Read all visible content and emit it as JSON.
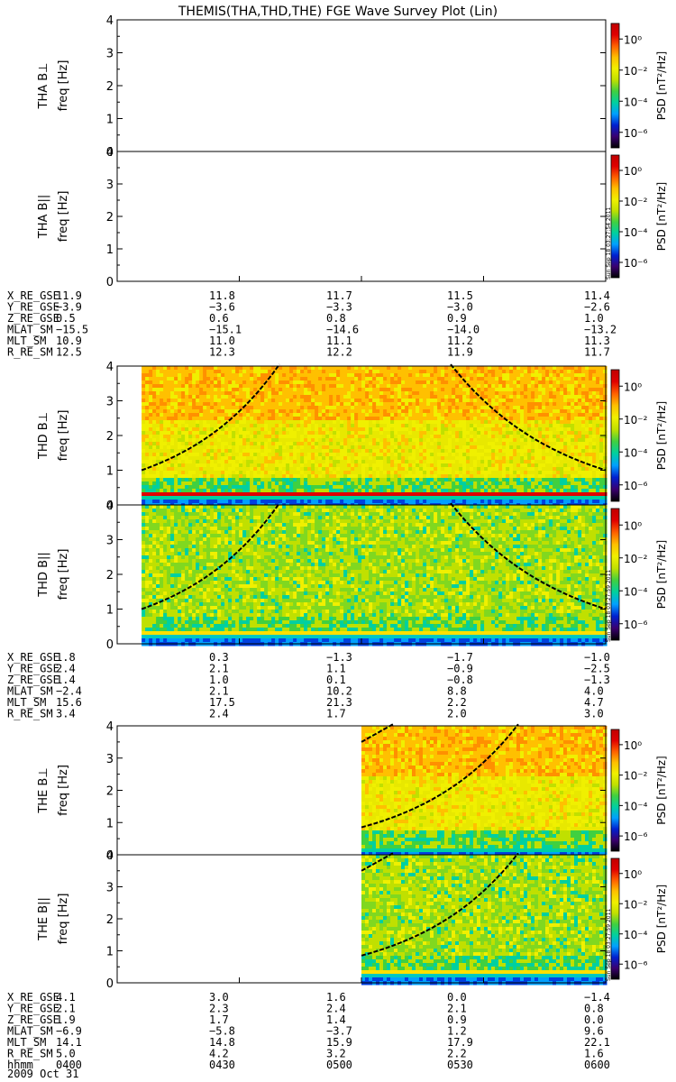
{
  "title": "THEMIS(THA,THD,THE) FGE Wave Survey Plot (Lin)",
  "date_label": "2009 Oct 31",
  "freq_unit_label": "freq [Hz]",
  "colorbar": {
    "label": "PSD [nT²/Hz]",
    "tick_labels": [
      "10⁰",
      "10⁻²",
      "10⁻⁴",
      "10⁻⁶"
    ],
    "colors": [
      "#000000",
      "#3a0070",
      "#0020d0",
      "#00a0ff",
      "#00d0a0",
      "#40d040",
      "#c0e000",
      "#f0f000",
      "#ffc000",
      "#ff6000",
      "#e00000",
      "#c00000"
    ]
  },
  "stamps": [
    "Sun Sep 18 03:27:54 2011",
    "Sun Sep 18 03:27:59 2011",
    "Sun Sep 18 03:27:59 2011"
  ],
  "chart_data": [
    {
      "type": "heatmap",
      "probe": "THA",
      "panels": [
        {
          "ylabel": "THA B⊥",
          "yticks": [
            "0",
            "1",
            "2",
            "3",
            "4"
          ],
          "ylim": [
            0,
            4
          ],
          "data_start_frac": null,
          "fce_curve": false
        },
        {
          "ylabel": "THA B||",
          "yticks": [
            "0",
            "1",
            "2",
            "3",
            "4"
          ],
          "ylim": [
            0,
            4
          ],
          "data_start_frac": null,
          "fce_curve": false
        }
      ],
      "ephemeris": {
        "rows": [
          "X_RE_GSE",
          "Y_RE_GSE",
          "Z_RE_GSE",
          "MLAT_SM",
          "MLT_SM",
          "R_RE_SM"
        ],
        "values": [
          [
            "11.9",
            "11.8",
            "11.7",
            "11.5",
            "11.4"
          ],
          [
            "−3.9",
            "−3.6",
            "−3.3",
            "−3.0",
            "−2.6"
          ],
          [
            "0.5",
            "0.6",
            "0.8",
            "0.9",
            "1.0"
          ],
          [
            "−15.5",
            "−15.1",
            "−14.6",
            "−14.0",
            "−13.2"
          ],
          [
            "10.9",
            "11.0",
            "11.1",
            "11.2",
            "11.3"
          ],
          [
            "12.5",
            "12.3",
            "12.2",
            "11.9",
            "11.7"
          ]
        ]
      }
    },
    {
      "type": "heatmap",
      "probe": "THD",
      "panels": [
        {
          "ylabel": "THD B⊥",
          "yticks": [
            "0",
            "1",
            "2",
            "3",
            "4"
          ],
          "ylim": [
            0,
            4
          ],
          "data_start_frac": 0.05,
          "fce_curve": true,
          "fce_sides": "both"
        },
        {
          "ylabel": "THD B||",
          "yticks": [
            "0",
            "1",
            "2",
            "3",
            "4"
          ],
          "ylim": [
            0,
            4
          ],
          "data_start_frac": 0.05,
          "fce_curve": true,
          "fce_sides": "both"
        }
      ],
      "ephemeris": {
        "rows": [
          "X_RE_GSE",
          "Y_RE_GSE",
          "Z_RE_GSE",
          "MLAT_SM",
          "MLT_SM",
          "R_RE_SM"
        ],
        "values": [
          [
            "1.8",
            "0.3",
            "−1.3",
            "−1.7",
            "−1.0"
          ],
          [
            "2.4",
            "2.1",
            "1.1",
            "−0.9",
            "−2.5"
          ],
          [
            "1.4",
            "1.0",
            "0.1",
            "−0.8",
            "−1.3"
          ],
          [
            "−2.4",
            "2.1",
            "10.2",
            "8.8",
            "4.0"
          ],
          [
            "15.6",
            "17.5",
            "21.3",
            "2.2",
            "4.7"
          ],
          [
            "3.4",
            "2.4",
            "1.7",
            "2.0",
            "3.0"
          ]
        ]
      }
    },
    {
      "type": "heatmap",
      "probe": "THE",
      "panels": [
        {
          "ylabel": "THE B⊥",
          "yticks": [
            "0",
            "1",
            "2",
            "3",
            "4"
          ],
          "ylim": [
            0,
            4
          ],
          "data_start_frac": 0.5,
          "fce_curve": true,
          "fce_sides": "right"
        },
        {
          "ylabel": "THE B||",
          "yticks": [
            "0",
            "1",
            "2",
            "3",
            "4"
          ],
          "ylim": [
            0,
            4
          ],
          "data_start_frac": 0.5,
          "fce_curve": true,
          "fce_sides": "right"
        }
      ],
      "ephemeris": {
        "rows": [
          "X_RE_GSE",
          "Y_RE_GSE",
          "Z_RE_GSE",
          "MLAT_SM",
          "MLT_SM",
          "R_RE_SM",
          "hhmm"
        ],
        "values": [
          [
            "4.1",
            "3.0",
            "1.6",
            "0.0",
            "−1.4"
          ],
          [
            "2.1",
            "2.3",
            "2.4",
            "2.1",
            "0.8"
          ],
          [
            "1.9",
            "1.7",
            "1.4",
            "0.9",
            "0.0"
          ],
          [
            "−6.9",
            "−5.8",
            "−3.7",
            "1.2",
            "9.6"
          ],
          [
            "14.1",
            "14.8",
            "15.9",
            "17.9",
            "22.1"
          ],
          [
            "5.0",
            "4.2",
            "3.2",
            "2.2",
            "1.6"
          ],
          [
            "0400",
            "0430",
            "0500",
            "0530",
            "0600"
          ]
        ]
      }
    }
  ]
}
